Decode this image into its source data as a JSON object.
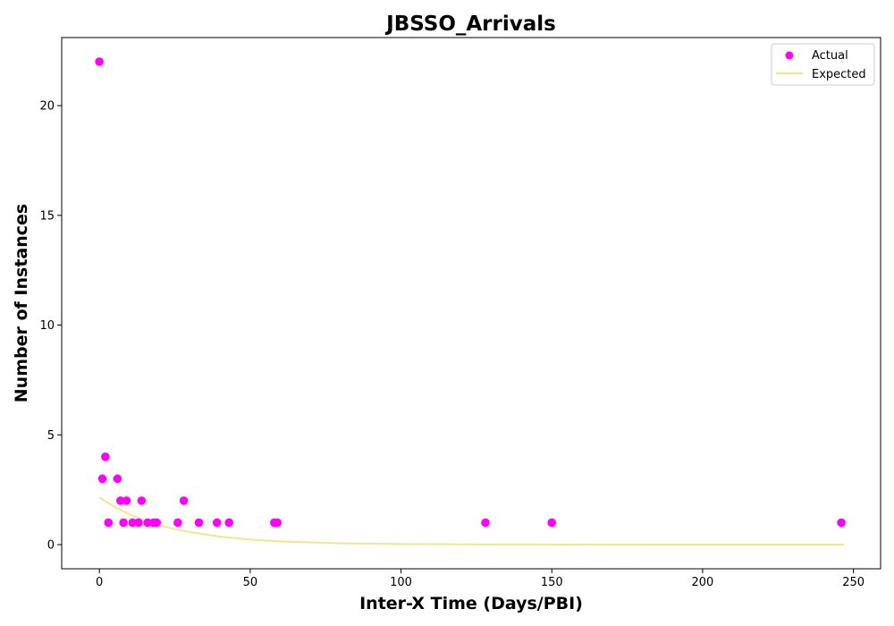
{
  "chart_data": {
    "type": "scatter",
    "title": "JBSSO_Arrivals",
    "xlabel": "Inter-X Time (Days/PBI)",
    "ylabel": "Number of Instances",
    "xlim": [
      -12.5,
      259
    ],
    "ylim": [
      -1.1,
      23.1
    ],
    "xticks": [
      0,
      50,
      100,
      150,
      200,
      250
    ],
    "yticks": [
      0,
      5,
      10,
      15,
      20
    ],
    "grid": false,
    "legend_position": "top-right",
    "series": [
      {
        "name": "Actual",
        "kind": "scatter",
        "color": "#ff00ff",
        "points": [
          {
            "x": 0,
            "y": 22
          },
          {
            "x": 1,
            "y": 3
          },
          {
            "x": 2,
            "y": 4
          },
          {
            "x": 3,
            "y": 1
          },
          {
            "x": 6,
            "y": 3
          },
          {
            "x": 7,
            "y": 2
          },
          {
            "x": 8,
            "y": 1
          },
          {
            "x": 9,
            "y": 2
          },
          {
            "x": 11,
            "y": 1
          },
          {
            "x": 13,
            "y": 1
          },
          {
            "x": 14,
            "y": 2
          },
          {
            "x": 16,
            "y": 1
          },
          {
            "x": 18,
            "y": 1
          },
          {
            "x": 19,
            "y": 1
          },
          {
            "x": 26,
            "y": 1
          },
          {
            "x": 28,
            "y": 2
          },
          {
            "x": 33,
            "y": 1
          },
          {
            "x": 39,
            "y": 1
          },
          {
            "x": 43,
            "y": 1
          },
          {
            "x": 58,
            "y": 1
          },
          {
            "x": 59,
            "y": 1
          },
          {
            "x": 128,
            "y": 1
          },
          {
            "x": 150,
            "y": 1
          },
          {
            "x": 246,
            "y": 1
          }
        ]
      },
      {
        "name": "Expected",
        "kind": "line",
        "color": "#f0e68c",
        "points": [
          {
            "x": 0,
            "y": 2.15
          },
          {
            "x": 5,
            "y": 1.72
          },
          {
            "x": 10,
            "y": 1.38
          },
          {
            "x": 15,
            "y": 1.1
          },
          {
            "x": 20,
            "y": 0.88
          },
          {
            "x": 25,
            "y": 0.71
          },
          {
            "x": 30,
            "y": 0.57
          },
          {
            "x": 40,
            "y": 0.36
          },
          {
            "x": 50,
            "y": 0.23
          },
          {
            "x": 60,
            "y": 0.15
          },
          {
            "x": 70,
            "y": 0.1
          },
          {
            "x": 80,
            "y": 0.06
          },
          {
            "x": 100,
            "y": 0.025
          },
          {
            "x": 125,
            "y": 0.008
          },
          {
            "x": 150,
            "y": 0.003
          },
          {
            "x": 200,
            "y": 0.0
          },
          {
            "x": 247,
            "y": 0.0
          }
        ]
      }
    ]
  }
}
